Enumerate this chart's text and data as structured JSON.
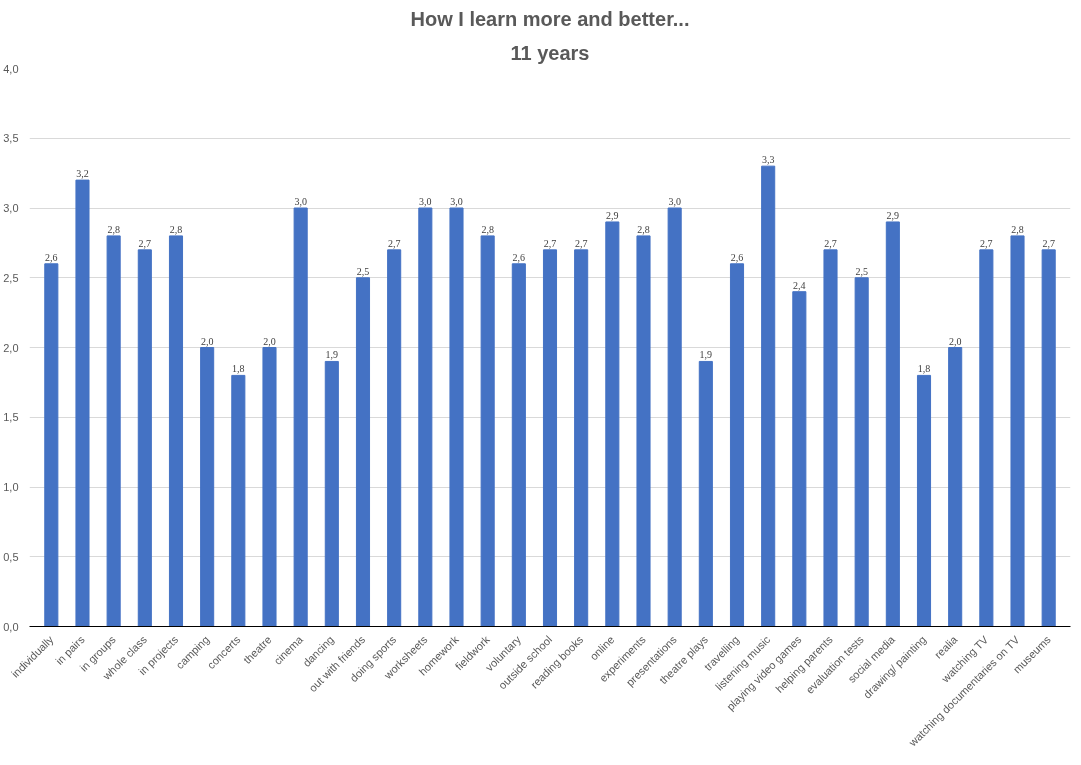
{
  "chart_data": {
    "type": "bar",
    "title": "How I learn more and better...",
    "subtitle": "11 years",
    "categories": [
      "individually",
      "in pairs",
      "in groups",
      "whole class",
      "in projects",
      "camping",
      "concerts",
      "theatre",
      "cinema",
      "dancing",
      "out with friends",
      "doing sports",
      "worksheets",
      "homework",
      "fieldwork",
      "voluntary",
      "outside school",
      "reading books",
      "online",
      "experiments",
      "presentations",
      "theatre plays",
      "travelling",
      "listening music",
      "playing video games",
      "helping parents",
      "evaluation tests",
      "social media",
      "drawing/ painting",
      "realia",
      "watching TV",
      "watching documentaries on TV",
      "museums"
    ],
    "values": [
      2.6,
      3.2,
      2.8,
      2.7,
      2.8,
      2.0,
      1.8,
      2.0,
      3.0,
      1.9,
      2.5,
      2.7,
      3.0,
      3.0,
      2.8,
      2.6,
      2.7,
      2.7,
      2.9,
      2.8,
      3.0,
      1.9,
      2.6,
      3.3,
      2.4,
      2.7,
      2.5,
      2.9,
      1.8,
      2.0,
      2.7,
      2.8,
      2.7
    ],
    "value_labels": [
      "2,6",
      "3,2",
      "2,8",
      "2,7",
      "2,8",
      "2,0",
      "1,8",
      "2,0",
      "3,0",
      "1,9",
      "2,5",
      "2,7",
      "3,0",
      "3,0",
      "2,8",
      "2,6",
      "2,7",
      "2,7",
      "2,9",
      "2,8",
      "3,0",
      "1,9",
      "2,6",
      "3,3",
      "2,4",
      "2,7",
      "2,5",
      "2,9",
      "1,8",
      "2,0",
      "2,7",
      "2,8",
      "2,7"
    ],
    "color": "#4472c4",
    "ylim": [
      0,
      4
    ],
    "yticks": [
      {
        "value": 0,
        "label": "0,0"
      },
      {
        "value": 0.5,
        "label": "0,5"
      },
      {
        "value": 1,
        "label": "1,0"
      },
      {
        "value": 1.5,
        "label": "1,5"
      },
      {
        "value": 2,
        "label": "2,0"
      },
      {
        "value": 2.5,
        "label": "2,5"
      },
      {
        "value": 3,
        "label": "3,0"
      },
      {
        "value": 3.5,
        "label": "3,5"
      },
      {
        "value": 4,
        "label": "4,0"
      }
    ],
    "grid": "y"
  }
}
